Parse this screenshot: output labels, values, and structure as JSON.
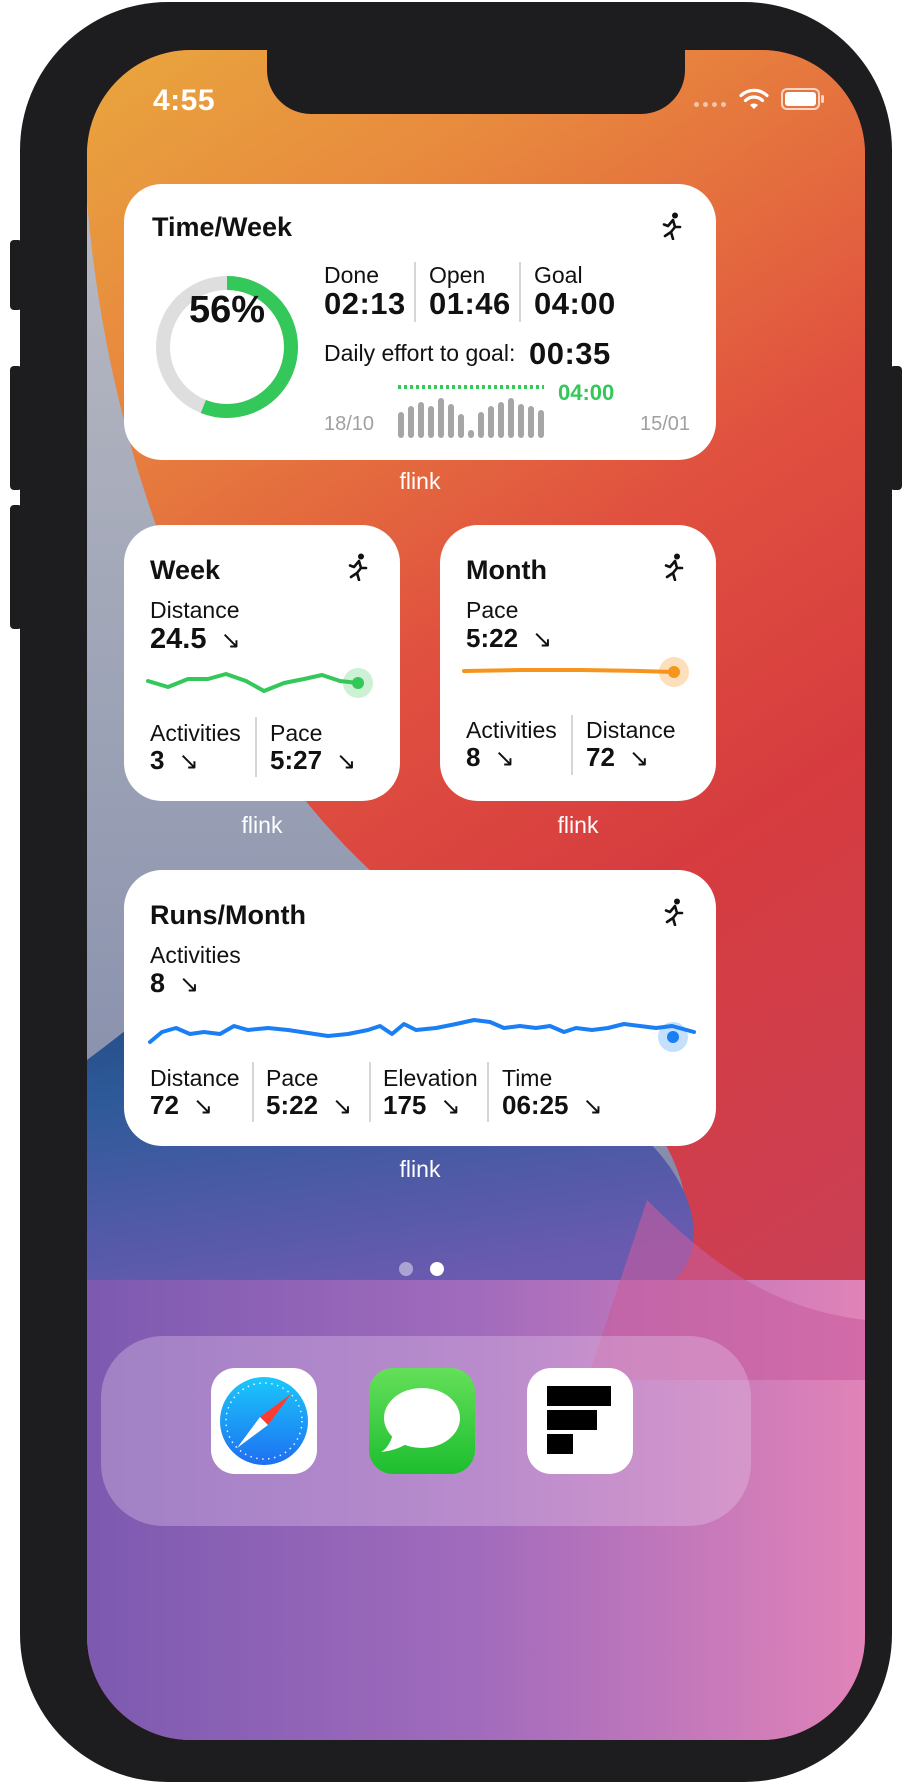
{
  "status_bar": {
    "time": "4:55"
  },
  "widgets": {
    "time_week": {
      "title": "Time/Week",
      "percent": "56%",
      "progress": 0.56,
      "done_label": "Done",
      "done_value": "02:13",
      "open_label": "Open",
      "open_value": "01:46",
      "goal_label": "Goal",
      "goal_value": "04:00",
      "daily_label": "Daily effort to goal:",
      "daily_value": "00:35",
      "chart_goal": "04:00",
      "start_date": "18/10",
      "end_date": "15/01",
      "caption": "flink"
    },
    "week": {
      "title": "Week",
      "distance_label": "Distance",
      "distance_value": "24.5",
      "activities_label": "Activities",
      "activities_value": "3",
      "pace_label": "Pace",
      "pace_value": "5:27",
      "caption": "flink"
    },
    "month": {
      "title": "Month",
      "pace_label": "Pace",
      "pace_value": "5:22",
      "activities_label": "Activities",
      "activities_value": "8",
      "distance_label": "Distance",
      "distance_value": "72",
      "caption": "flink"
    },
    "runs_month": {
      "title": "Runs/Month",
      "activities_label": "Activities",
      "activities_value": "8",
      "distance_label": "Distance",
      "distance_value": "72",
      "pace_label": "Pace",
      "pace_value": "5:22",
      "elevation_label": "Elevation",
      "elevation_value": "175",
      "time_label": "Time",
      "time_value": "06:25",
      "caption": "flink"
    }
  },
  "trend_arrow": "↘",
  "icons": {
    "activity": "running-figure-icon",
    "dock": [
      "safari-icon",
      "messages-icon",
      "flink-app-icon"
    ]
  },
  "page_indicator": {
    "count": 2,
    "active": 2
  },
  "colors": {
    "green": "#34c759",
    "orange": "#f7941d",
    "blue": "#1a7ff5",
    "bars": "#a6a6a6"
  }
}
